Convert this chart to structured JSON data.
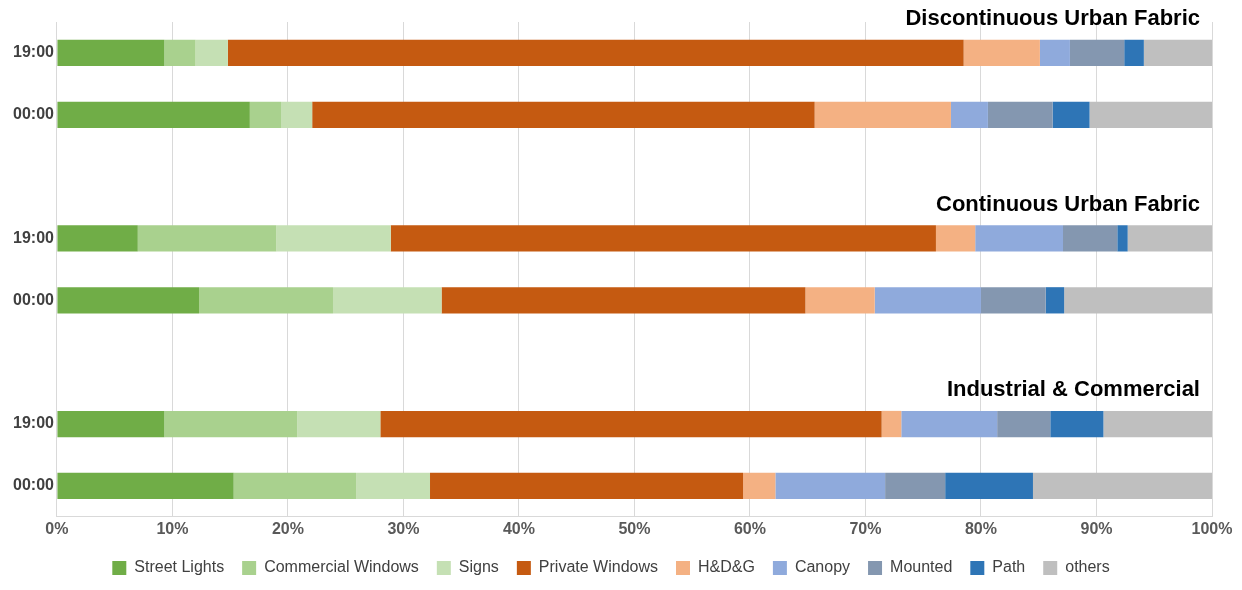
{
  "chart_data": {
    "type": "bar",
    "orientation": "horizontal",
    "stacked": true,
    "categories": [
      "19:00",
      "00:00",
      null,
      "19:00",
      "00:00",
      null,
      "19:00",
      "00:00"
    ],
    "series": [
      {
        "name": "Street Lights",
        "color": "#70ad47",
        "values": [
          9.3,
          16.7,
          null,
          7.0,
          12.3,
          null,
          9.3,
          15.3
        ]
      },
      {
        "name": "Commercial Windows",
        "color": "#a9d18e",
        "values": [
          2.7,
          2.7,
          null,
          12.0,
          11.6,
          null,
          11.5,
          10.6
        ]
      },
      {
        "name": "Signs",
        "color": "#c5e0b4",
        "values": [
          2.8,
          2.7,
          null,
          9.9,
          9.4,
          null,
          7.2,
          6.4
        ]
      },
      {
        "name": "Private Windows",
        "color": "#c55a11",
        "values": [
          63.7,
          43.5,
          null,
          47.2,
          31.5,
          null,
          43.4,
          27.1
        ]
      },
      {
        "name": "H&D&G",
        "color": "#f4b183",
        "values": [
          6.6,
          11.8,
          null,
          3.4,
          6.0,
          null,
          1.7,
          2.8
        ]
      },
      {
        "name": "Canopy",
        "color": "#8faadc",
        "values": [
          2.6,
          3.2,
          null,
          7.6,
          9.2,
          null,
          8.3,
          9.5
        ]
      },
      {
        "name": "Mounted",
        "color": "#8497b0",
        "values": [
          4.7,
          5.6,
          null,
          4.7,
          5.6,
          null,
          4.6,
          5.2
        ]
      },
      {
        "name": "Path",
        "color": "#2e75b6",
        "values": [
          1.7,
          3.2,
          null,
          0.9,
          1.6,
          null,
          4.6,
          7.6
        ]
      },
      {
        "name": "others",
        "color": "#bfbfbf",
        "values": [
          5.9,
          10.6,
          null,
          7.3,
          12.8,
          null,
          9.4,
          15.5
        ]
      }
    ],
    "xlim": [
      0,
      100
    ],
    "xticks": [
      {
        "value": 0,
        "label": "0%"
      },
      {
        "value": 10,
        "label": "10%"
      },
      {
        "value": 20,
        "label": "20%"
      },
      {
        "value": 30,
        "label": "30%"
      },
      {
        "value": 40,
        "label": "40%"
      },
      {
        "value": 50,
        "label": "50%"
      },
      {
        "value": 60,
        "label": "60%"
      },
      {
        "value": 70,
        "label": "70%"
      },
      {
        "value": 80,
        "label": "80%"
      },
      {
        "value": 90,
        "label": "90%"
      },
      {
        "value": 100,
        "label": "100%"
      }
    ],
    "annotations": [
      "Discontinuous Urban Fabric",
      "Continuous Urban Fabric",
      "Industrial & Commercial"
    ],
    "grid": "x",
    "legend": "bottom"
  }
}
